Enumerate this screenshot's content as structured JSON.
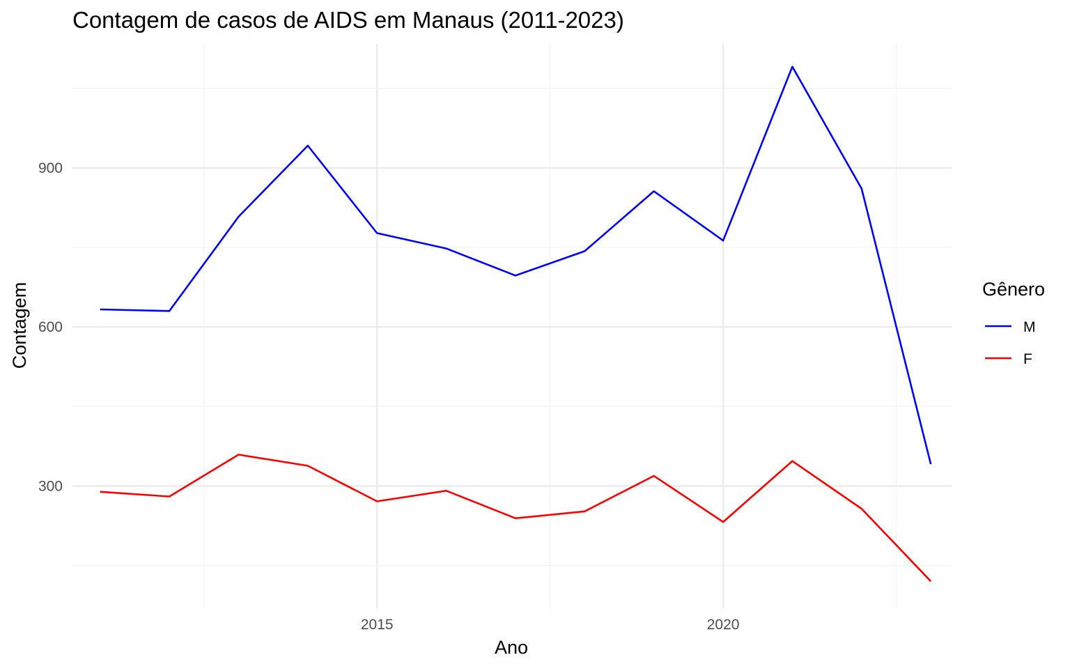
{
  "chart_data": {
    "type": "line",
    "title": "Contagem de casos de AIDS em Manaus (2011-2023)",
    "xlabel": "Ano",
    "ylabel": "Contagem",
    "x": [
      2011,
      2012,
      2013,
      2014,
      2015,
      2016,
      2017,
      2018,
      2019,
      2020,
      2021,
      2022,
      2023
    ],
    "series": [
      {
        "name": "M",
        "color": "#0000ff",
        "values": [
          633,
          630,
          808,
          942,
          777,
          748,
          697,
          743,
          856,
          763,
          1091,
          861,
          341
        ]
      },
      {
        "name": "F",
        "color": "#ff0000",
        "values": [
          289,
          280,
          359,
          338,
          271,
          291,
          239,
          252,
          319,
          232,
          347,
          257,
          120
        ]
      }
    ],
    "xlim": [
      2010.6,
      2023.3
    ],
    "ylim": [
      69,
      1134
    ],
    "x_major_ticks": [
      2015,
      2020
    ],
    "x_minor_ticks": [
      2012.5,
      2017.5,
      2022.5
    ],
    "y_major_ticks": [
      300,
      600,
      900
    ],
    "y_minor_ticks": [
      150,
      450,
      750,
      1050
    ],
    "grid": true,
    "legend": {
      "title": "Gênero",
      "position": "right"
    }
  }
}
